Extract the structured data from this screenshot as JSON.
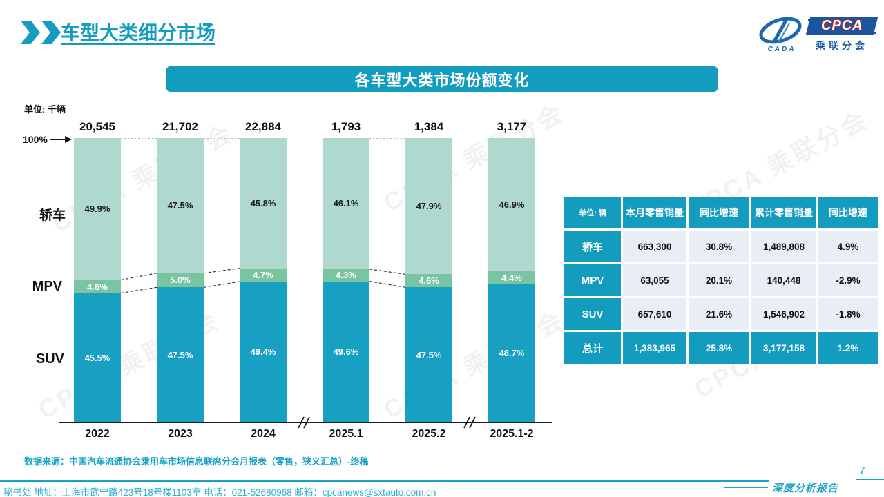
{
  "page": {
    "title": "车型大类细分市场",
    "page_number": "7",
    "report_label": "深度分析报告"
  },
  "logo": {
    "cpca": "CPCA",
    "cada": "CADA",
    "subtitle": "乘联分会"
  },
  "banner": {
    "title": "各车型大类市场份额变化"
  },
  "chart_data": {
    "type": "stacked-bar-100",
    "unit_label": "单位: 千辆",
    "axis_100_label": "100%",
    "categories": [
      "2022",
      "2023",
      "2024",
      "2025.1",
      "2025.2",
      "2025.1-2"
    ],
    "totals": [
      "20,545",
      "21,702",
      "22,884",
      "1,793",
      "1,384",
      "3,177"
    ],
    "series": [
      {
        "key": "sedan",
        "name": "轿车",
        "color": "#afd8cf",
        "label_color": "#1a1a1a",
        "values": [
          49.9,
          47.5,
          45.8,
          46.1,
          47.9,
          46.9
        ]
      },
      {
        "key": "mpv",
        "name": "MPV",
        "color": "#79c4a1",
        "label_color": "#ffffff",
        "values": [
          4.6,
          5.0,
          4.7,
          4.3,
          4.6,
          4.4
        ]
      },
      {
        "key": "suv",
        "name": "SUV",
        "color": "#18a0c2",
        "label_color": "#ffffff",
        "values": [
          45.5,
          47.5,
          49.4,
          49.6,
          47.5,
          48.7
        ]
      }
    ],
    "legend_position": "left-of-bars",
    "ylim": [
      0,
      100
    ],
    "grid": false,
    "connected_pairs": [
      [
        0,
        1
      ],
      [
        1,
        2
      ],
      [
        3,
        4
      ]
    ],
    "axis_break_gap_after": [
      2,
      4
    ]
  },
  "table": {
    "unit_header": "单位: 辆",
    "headers": [
      "本月零售销量",
      "同比增速",
      "累计零售销量",
      "同比增速"
    ],
    "rows": [
      {
        "label": "轿车",
        "cells": [
          "663,300",
          "30.8%",
          "1,489,808",
          "4.9%"
        ]
      },
      {
        "label": "MPV",
        "cells": [
          "63,055",
          "20.1%",
          "140,448",
          "-2.9%"
        ]
      },
      {
        "label": "SUV",
        "cells": [
          "657,610",
          "21.6%",
          "1,546,902",
          "-1.8%"
        ]
      },
      {
        "label": "总计",
        "cells": [
          "1,383,965",
          "25.8%",
          "3,177,158",
          "1.2%"
        ]
      }
    ]
  },
  "footer": {
    "source": "数据来源：中国汽车流通协会乘用车市场信息联席分会月报表（零售，狭义汇总）-终稿",
    "contact": "秘书处  地址：上海市武宁路423号18号楼1103室 电话：021-52680968  邮箱：cpcanews@sxtauto.com.cn"
  },
  "watermark_text": "CPCA 乘联分会",
  "colors": {
    "primary": "#149cbe",
    "sedan": "#afd8cf",
    "mpv": "#79c4a1",
    "suv": "#18a0c2",
    "logo_blue": "#1a55a0"
  }
}
